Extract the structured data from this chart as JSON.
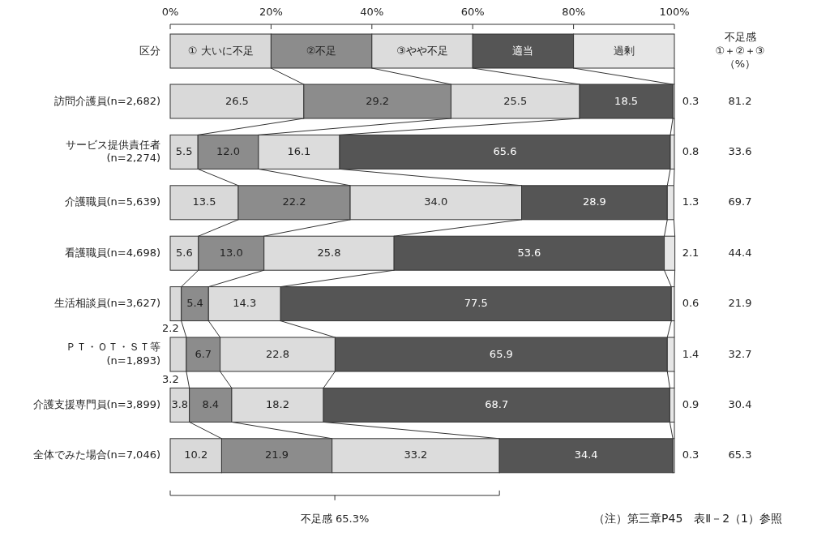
{
  "chart_data": {
    "type": "bar",
    "orientation": "horizontal",
    "stacked": true,
    "legend": "top",
    "legend_title": "区分",
    "categories": [
      "訪問介護員(n=2,682)",
      "サービス提供責任者\n(n=2,274)",
      "介護職員(n=5,639)",
      "看護職員(n=4,698)",
      "生活相談員(n=3,627)",
      "ＰＴ・ＯＴ・ＳＴ等\n(n=1,893)",
      "介護支援専門員(n=3,899)",
      "全体でみた場合(n=7,046)"
    ],
    "series": [
      {
        "name": "① 大いに不足",
        "color": "#d9d9d9",
        "values": [
          26.5,
          5.5,
          13.5,
          5.6,
          2.2,
          3.2,
          3.8,
          10.2
        ],
        "value_labels": [
          "26.5",
          "5.5",
          "13.5",
          "5.6",
          "2.2",
          "3.2",
          "3.8",
          "10.2"
        ]
      },
      {
        "name": "②不足",
        "color": "#8c8c8c",
        "values": [
          29.2,
          12.0,
          22.2,
          13.0,
          5.4,
          6.7,
          8.4,
          21.9
        ],
        "value_labels": [
          "29.2",
          "12.0",
          "22.2",
          "13.0",
          "5.4",
          "6.7",
          "8.4",
          "21.9"
        ]
      },
      {
        "name": "③やや不足",
        "color": "#dcdcdc",
        "values": [
          25.5,
          16.1,
          34.0,
          25.8,
          14.3,
          22.8,
          18.2,
          33.2
        ],
        "value_labels": [
          "25.5",
          "16.1",
          "34.0",
          "25.8",
          "14.3",
          "22.8",
          "18.2",
          "33.2"
        ]
      },
      {
        "name": "適当",
        "color": "#555555",
        "values": [
          18.5,
          65.6,
          28.9,
          53.6,
          77.5,
          65.9,
          68.7,
          34.4
        ],
        "value_labels": [
          "18.5",
          "65.6",
          "28.9",
          "53.6",
          "77.5",
          "65.9",
          "68.7",
          "34.4"
        ]
      },
      {
        "name": "過剰",
        "color": "#e6e6e6",
        "values": [
          0.3,
          0.8,
          1.3,
          2.1,
          0.6,
          1.4,
          0.9,
          0.3
        ],
        "value_labels": [
          "0.3",
          "0.8",
          "1.3",
          "2.1",
          "0.6",
          "1.4",
          "0.9",
          "0.3"
        ]
      }
    ],
    "xlim": [
      0,
      100
    ],
    "xticks": [
      {
        "value": 0,
        "label": "0%"
      },
      {
        "value": 20,
        "label": "20%"
      },
      {
        "value": 40,
        "label": "40%"
      },
      {
        "value": 60,
        "label": "60%"
      },
      {
        "value": 80,
        "label": "80%"
      },
      {
        "value": 100,
        "label": "100%"
      }
    ],
    "annotations": [
      "不足感\n①＋②＋③\n（%）",
      "81.2",
      "33.6",
      "69.7",
      "44.4",
      "21.9",
      "32.7",
      "30.4",
      "65.3",
      "不足感  65.3%",
      "（注）第三章P45　表Ⅱ－2（1）参照"
    ]
  }
}
